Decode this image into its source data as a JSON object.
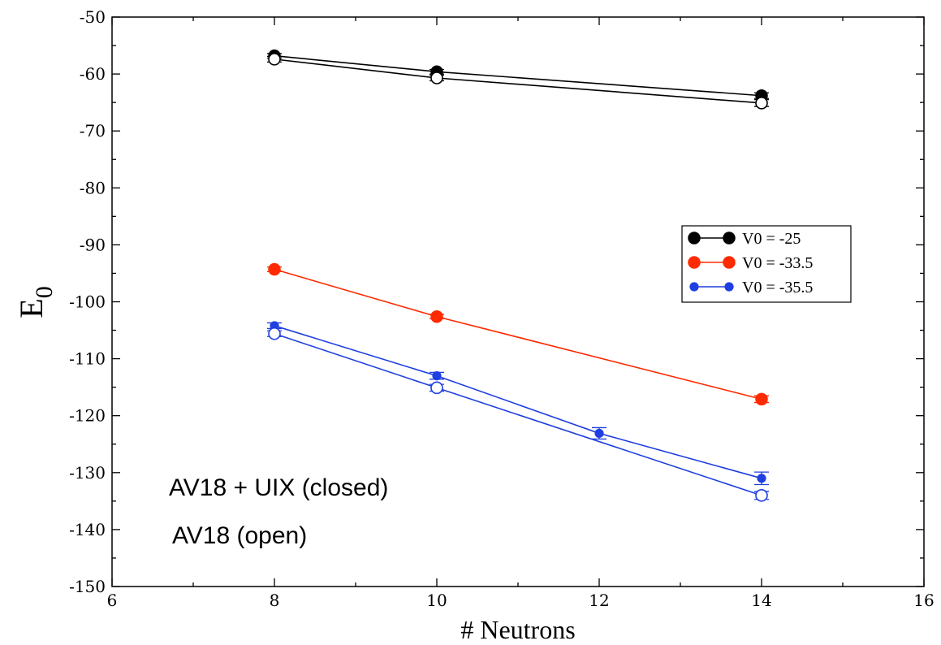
{
  "chart_data": {
    "type": "line",
    "xlabel": "# Neutrons",
    "ylabel": "E",
    "ylabel_subscript": "0",
    "xlim": [
      6,
      16
    ],
    "ylim": [
      -150,
      -50
    ],
    "xticks": [
      6,
      8,
      10,
      12,
      14,
      16
    ],
    "yticks": [
      -150,
      -140,
      -130,
      -120,
      -110,
      -100,
      -90,
      -80,
      -70,
      -60,
      -50
    ],
    "grid": false,
    "legend_position": "right",
    "series": [
      {
        "name": "V0 = -25",
        "legend": true,
        "color": "#000000",
        "marker": "filled-large",
        "x": [
          8,
          10,
          14
        ],
        "y": [
          -56.8,
          -59.6,
          -63.8
        ],
        "err": [
          0.4,
          0.4,
          0.5
        ]
      },
      {
        "name": "",
        "legend": false,
        "color": "#000000",
        "marker": "open-large",
        "x": [
          8,
          10,
          14
        ],
        "y": [
          -57.4,
          -60.7,
          -65.1
        ],
        "err": [
          0.5,
          0.5,
          0.6
        ]
      },
      {
        "name": "V0 = -33.5",
        "legend": true,
        "color": "#ff2a00",
        "marker": "filled-large",
        "x": [
          8,
          10,
          14
        ],
        "y": [
          -94.3,
          -102.6,
          -117.1
        ],
        "err": [
          0.4,
          0.4,
          0.6
        ]
      },
      {
        "name": "V0 = -35.5",
        "legend": true,
        "color": "#1f3fe0",
        "marker": "filled-small",
        "x": [
          8,
          10,
          12,
          14
        ],
        "y": [
          -104.2,
          -113.0,
          -123.1,
          -131.0
        ],
        "err": [
          0.5,
          0.6,
          1.0,
          1.1
        ]
      },
      {
        "name": "",
        "legend": false,
        "color": "#1f3fe0",
        "marker": "open-large",
        "x": [
          8,
          10,
          14
        ],
        "y": [
          -105.6,
          -115.1,
          -134.0
        ],
        "err": [
          0.5,
          0.6,
          0.7
        ]
      }
    ],
    "annotations": [
      "AV18 + UIX (closed)",
      "AV18 (open)"
    ]
  }
}
